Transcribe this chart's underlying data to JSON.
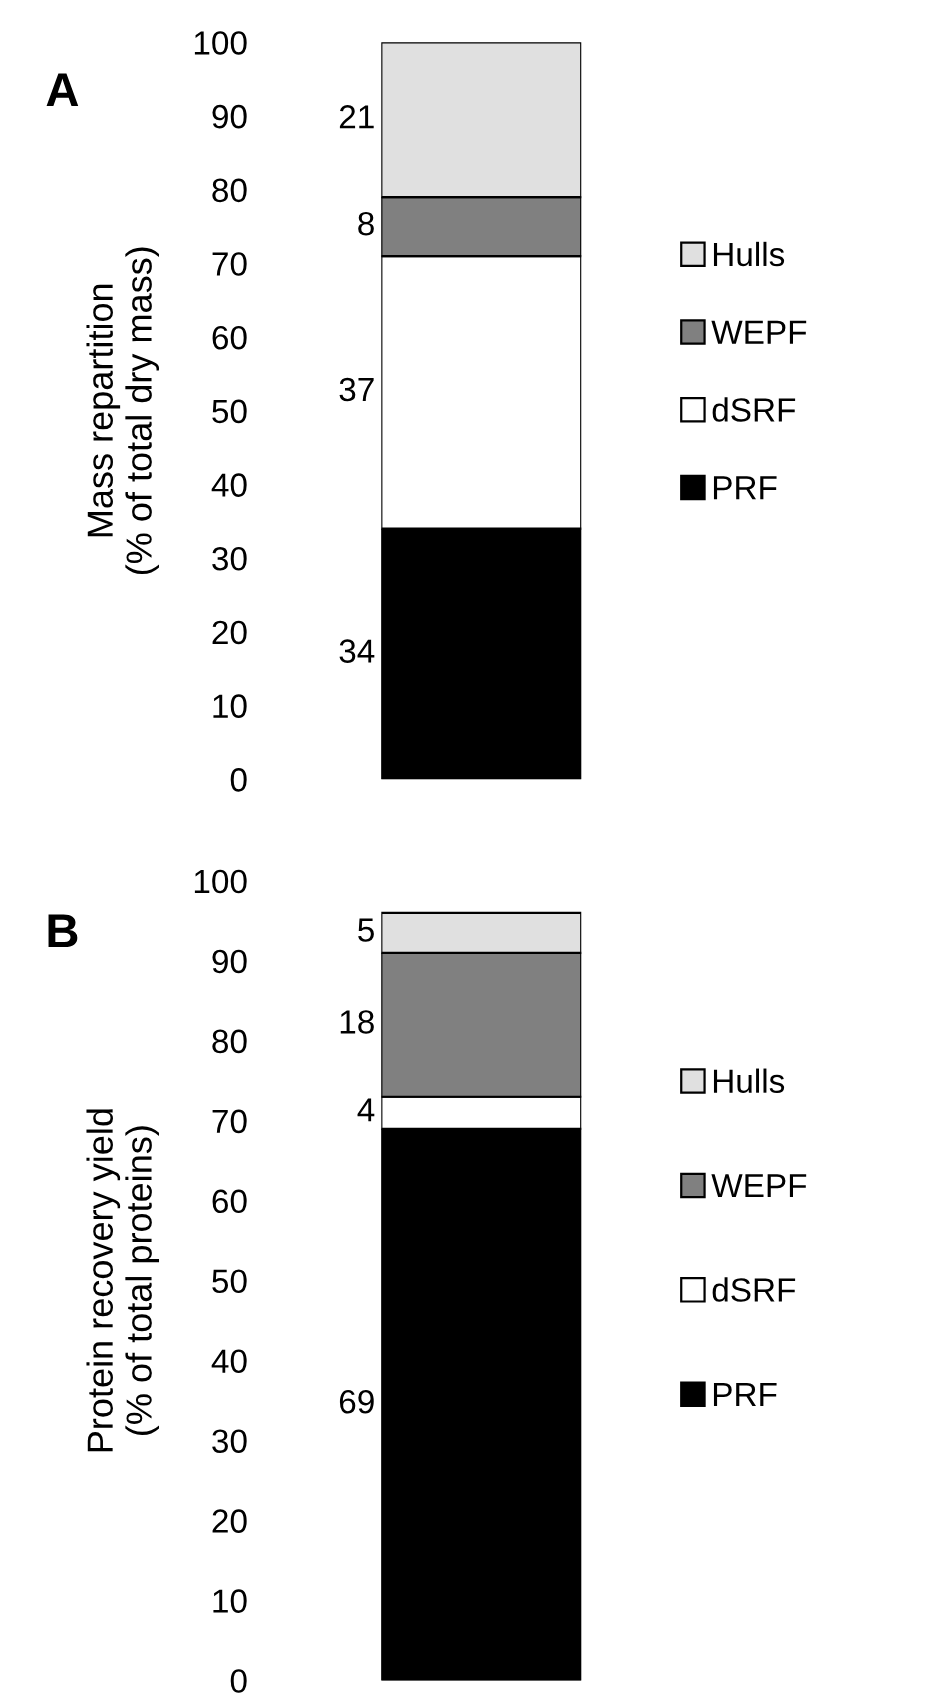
{
  "chart_data": [
    {
      "type": "bar",
      "title": "A",
      "ylabel": "Mass repartition\n(% of total dry mass)",
      "categories": [
        null
      ],
      "stacked": true,
      "data_labels": true,
      "legend": "right",
      "grid": false,
      "tick_labels": "y",
      "ylim": [
        0,
        100
      ],
      "yticks": [
        0,
        10,
        20,
        30,
        40,
        50,
        60,
        70,
        80,
        90,
        100
      ],
      "series": [
        {
          "name": "PRF",
          "color": "#000000",
          "values": [
            34
          ]
        },
        {
          "name": "dSRF",
          "color": "#ffffff",
          "values": [
            37
          ]
        },
        {
          "name": "WEPF",
          "color": "#808080",
          "values": [
            8
          ]
        },
        {
          "name": "Hulls",
          "color": "#e0e0e0",
          "values": [
            21
          ]
        }
      ]
    },
    {
      "type": "bar",
      "title": "B",
      "ylabel": "Protein recovery yield\n(% of total proteins)",
      "categories": [
        null
      ],
      "stacked": true,
      "data_labels": true,
      "legend": "right",
      "grid": false,
      "tick_labels": "y",
      "ylim": [
        0,
        100
      ],
      "yticks": [
        0,
        10,
        20,
        30,
        40,
        50,
        60,
        70,
        80,
        90,
        100
      ],
      "series": [
        {
          "name": "PRF",
          "color": "#000000",
          "values": [
            69
          ]
        },
        {
          "name": "dSRF",
          "color": "#ffffff",
          "values": [
            4
          ]
        },
        {
          "name": "WEPF",
          "color": "#808080",
          "values": [
            18
          ]
        },
        {
          "name": "Hulls",
          "color": "#e0e0e0",
          "values": [
            5
          ]
        }
      ]
    }
  ]
}
